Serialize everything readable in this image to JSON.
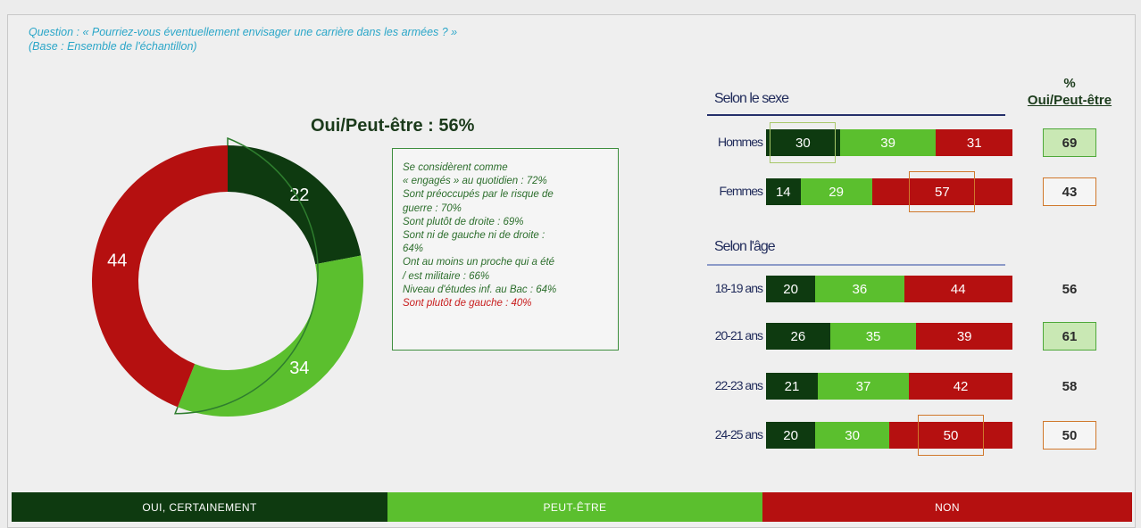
{
  "question": "Question : « Pourriez-vous éventuellement envisager une carrière dans les armées ? »",
  "base": "(Base : Ensemble de l'échantillon)",
  "donut_title": "Oui/Peut-être : 56%",
  "colors": {
    "dark": "#0e3a10",
    "light": "#5bbf2e",
    "red": "#b51010"
  },
  "profile_lines": [
    "Se considèrent comme",
    "« engagés » au quotidien : 72%",
    "Sont préoccupés par le risque de",
    "guerre : 70%",
    "Sont plutôt de droite : 69%",
    "Sont ni de gauche ni de droite :",
    "64%",
    "Ont au moins un proche qui a été",
    "/ est militaire : 66%",
    "Niveau d'études inf. au Bac : 64%"
  ],
  "profile_red_line": "Sont plutôt de gauche : 40%",
  "section_sexe": "Selon le sexe",
  "section_age": "Selon l'âge",
  "pct_header_1": "%",
  "pct_header_2": "Oui/Peut-être",
  "legend": {
    "oui": "Oui, certainement",
    "peut": "Peut-être",
    "non": "Non"
  },
  "chart_data": [
    {
      "type": "pie",
      "title": "Oui/Peut-être : 56%",
      "categories": [
        "Oui, certainement",
        "Peut-être",
        "Non"
      ],
      "values": [
        22,
        34,
        44
      ]
    },
    {
      "type": "bar",
      "stacked": true,
      "orientation": "horizontal",
      "groups": [
        {
          "title": "Selon le sexe",
          "categories": [
            "Hommes",
            "Femmes"
          ]
        },
        {
          "title": "Selon l'âge",
          "categories": [
            "18-19 ans",
            "20-21 ans",
            "22-23 ans",
            "24-25 ans"
          ]
        }
      ],
      "categories": [
        "Hommes",
        "Femmes",
        "18-19 ans",
        "20-21 ans",
        "22-23 ans",
        "24-25 ans"
      ],
      "series": [
        {
          "name": "Oui, certainement",
          "values": [
            30,
            14,
            20,
            26,
            21,
            20
          ]
        },
        {
          "name": "Peut-être",
          "values": [
            39,
            29,
            36,
            35,
            37,
            30
          ]
        },
        {
          "name": "Non",
          "values": [
            31,
            57,
            44,
            39,
            42,
            50
          ]
        }
      ],
      "oui_peut_etre_pct": [
        69,
        43,
        56,
        61,
        58,
        50
      ]
    }
  ]
}
